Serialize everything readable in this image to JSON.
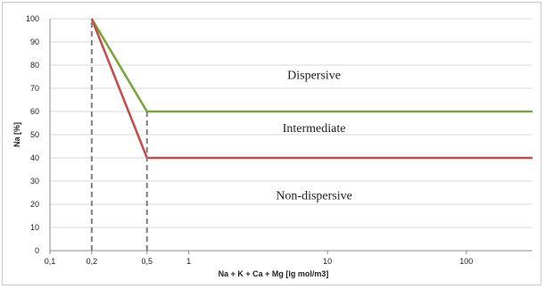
{
  "chart_data": {
    "type": "line",
    "xlabel": "Na + K + Ca + Mg [lg mol/m3]",
    "ylabel": "Na [%]",
    "x_scale": "log",
    "xlim": [
      0.1,
      300
    ],
    "ylim": [
      0,
      100
    ],
    "grid": true,
    "x_ticks": [
      {
        "value": 0.1,
        "label": "0,1"
      },
      {
        "value": 0.2,
        "label": "0,2"
      },
      {
        "value": 0.5,
        "label": "0,5"
      },
      {
        "value": 1,
        "label": "1"
      },
      {
        "value": 10,
        "label": "10"
      },
      {
        "value": 100,
        "label": "100"
      }
    ],
    "y_ticks": [
      0,
      10,
      20,
      30,
      40,
      50,
      60,
      70,
      80,
      90,
      100
    ],
    "series": [
      {
        "color": "#7aa63a",
        "points": [
          [
            0.2,
            100
          ],
          [
            0.5,
            60
          ],
          [
            300,
            60
          ]
        ]
      },
      {
        "color": "#c0504d",
        "points": [
          [
            0.2,
            100
          ],
          [
            0.5,
            40
          ],
          [
            300,
            40
          ]
        ]
      }
    ],
    "reference_lines": [
      {
        "x": 0.2,
        "y_from": 0,
        "y_to": 100,
        "color": "#7f7f7f",
        "style": "dashed"
      },
      {
        "x": 0.5,
        "y_from": 0,
        "y_to": 60,
        "color": "#7f7f7f",
        "style": "dashed"
      }
    ],
    "annotations": [
      {
        "text": "Dispersive",
        "x": 8,
        "y": 76
      },
      {
        "text": "Intermediate",
        "x": 8,
        "y": 53
      },
      {
        "text": "Non-dispersive",
        "x": 8,
        "y": 24
      }
    ]
  }
}
